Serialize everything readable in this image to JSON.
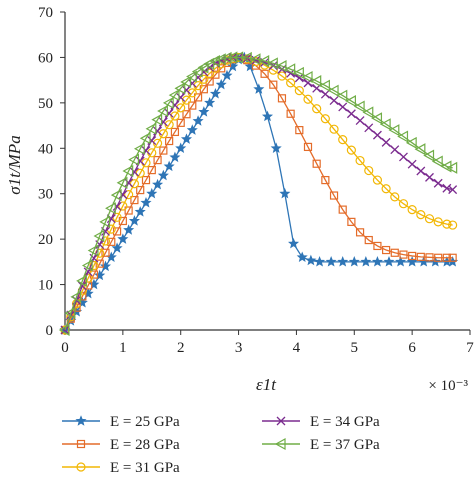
{
  "chart_data": {
    "type": "line",
    "xlabel": "ε1t",
    "ylabel": "σ1t/MPa",
    "x_multiplier_label": "× 10⁻³",
    "xlim": [
      0,
      7
    ],
    "ylim": [
      0,
      70
    ],
    "x_ticks": [
      "0",
      "1",
      "2",
      "3",
      "4",
      "5",
      "6",
      "7"
    ],
    "y_ticks": [
      "0",
      "10",
      "20",
      "30",
      "40",
      "50",
      "60",
      "70"
    ],
    "grid": false,
    "legend_position": "bottom",
    "series": [
      {
        "name": "E = 25 GPa",
        "color": "#2e75b6",
        "marker": "star",
        "x": [
          0,
          0.1,
          0.2,
          0.3,
          0.4,
          0.5,
          0.6,
          0.7,
          0.8,
          0.9,
          1.0,
          1.1,
          1.2,
          1.3,
          1.4,
          1.5,
          1.6,
          1.7,
          1.8,
          1.9,
          2.0,
          2.1,
          2.2,
          2.3,
          2.4,
          2.5,
          2.6,
          2.7,
          2.8,
          2.9,
          3.0,
          3.1,
          3.2,
          3.35,
          3.5,
          3.65,
          3.8,
          3.95,
          4.1,
          4.25,
          4.4,
          4.6,
          4.8,
          5.0,
          5.2,
          5.4,
          5.6,
          5.8,
          6.0,
          6.2,
          6.4,
          6.6,
          6.7
        ],
        "y": [
          0,
          2,
          4,
          6,
          8,
          10,
          12,
          14,
          16,
          18,
          20,
          22,
          24,
          26,
          28,
          30,
          32,
          34,
          36,
          38,
          40,
          42,
          44,
          46,
          48,
          50,
          52,
          54,
          56,
          58,
          59.5,
          60,
          58,
          53,
          47,
          40,
          30,
          19,
          16,
          15.3,
          15,
          15,
          15,
          15,
          15,
          15,
          15,
          15,
          15,
          15,
          15,
          15,
          15
        ]
      },
      {
        "name": "E = 28 GPa",
        "color": "#e46c2a",
        "marker": "square",
        "x": [
          0,
          0.1,
          0.2,
          0.3,
          0.4,
          0.5,
          0.6,
          0.7,
          0.8,
          0.9,
          1.0,
          1.1,
          1.2,
          1.3,
          1.4,
          1.5,
          1.6,
          1.7,
          1.8,
          1.9,
          2.0,
          2.1,
          2.2,
          2.3,
          2.4,
          2.5,
          2.6,
          2.7,
          2.8,
          2.9,
          3.0,
          3.15,
          3.3,
          3.45,
          3.6,
          3.75,
          3.9,
          4.05,
          4.2,
          4.35,
          4.5,
          4.65,
          4.8,
          4.95,
          5.1,
          5.25,
          5.4,
          5.55,
          5.7,
          5.85,
          6.0,
          6.15,
          6.3,
          6.45,
          6.6,
          6.7
        ],
        "y": [
          0,
          2.5,
          4.9,
          7.4,
          9.8,
          12.2,
          14.6,
          17,
          19.4,
          21.7,
          24,
          26.3,
          28.6,
          30.8,
          33,
          35.2,
          37.4,
          39.5,
          41.6,
          43.6,
          45.6,
          47.5,
          49.4,
          51.2,
          53,
          54.7,
          56.2,
          57.6,
          58.8,
          59.6,
          60,
          59.4,
          58.2,
          56.4,
          54,
          51,
          47.6,
          44,
          40.3,
          36.6,
          33,
          29.6,
          26.5,
          23.8,
          21.5,
          19.8,
          18.5,
          17.6,
          17,
          16.6,
          16.3,
          16.1,
          16,
          15.9,
          15.9,
          15.9
        ]
      },
      {
        "name": "E = 31 GPa",
        "color": "#f2b705",
        "marker": "circle",
        "x": [
          0,
          0.1,
          0.2,
          0.3,
          0.4,
          0.5,
          0.6,
          0.7,
          0.8,
          0.9,
          1.0,
          1.1,
          1.2,
          1.3,
          1.4,
          1.5,
          1.6,
          1.7,
          1.8,
          1.9,
          2.0,
          2.1,
          2.2,
          2.3,
          2.4,
          2.5,
          2.6,
          2.7,
          2.8,
          2.9,
          3.0,
          3.15,
          3.3,
          3.45,
          3.6,
          3.75,
          3.9,
          4.05,
          4.2,
          4.35,
          4.5,
          4.65,
          4.8,
          4.95,
          5.1,
          5.25,
          5.4,
          5.55,
          5.7,
          5.85,
          6.0,
          6.15,
          6.3,
          6.45,
          6.6,
          6.7
        ],
        "y": [
          0,
          2.9,
          5.8,
          8.6,
          11.4,
          14.2,
          16.9,
          19.6,
          22.2,
          24.8,
          27.3,
          29.8,
          32.2,
          34.5,
          36.8,
          39,
          41.1,
          43.2,
          45.2,
          47.1,
          48.9,
          50.6,
          52.2,
          53.8,
          55.2,
          56.5,
          57.6,
          58.6,
          59.4,
          59.8,
          60,
          59.7,
          59.1,
          58.3,
          57.2,
          55.9,
          54.4,
          52.7,
          50.8,
          48.7,
          46.5,
          44.2,
          41.9,
          39.6,
          37.3,
          35.1,
          33,
          31.1,
          29.3,
          27.8,
          26.5,
          25.4,
          24.5,
          23.8,
          23.3,
          23.1
        ]
      },
      {
        "name": "E = 34 GPa",
        "color": "#7b2c8f",
        "marker": "x",
        "x": [
          0,
          0.1,
          0.2,
          0.3,
          0.4,
          0.5,
          0.6,
          0.7,
          0.8,
          0.9,
          1.0,
          1.1,
          1.2,
          1.3,
          1.4,
          1.5,
          1.6,
          1.7,
          1.8,
          1.9,
          2.0,
          2.1,
          2.2,
          2.3,
          2.4,
          2.5,
          2.6,
          2.7,
          2.8,
          2.9,
          3.0,
          3.15,
          3.3,
          3.45,
          3.6,
          3.75,
          3.9,
          4.05,
          4.2,
          4.35,
          4.5,
          4.65,
          4.8,
          4.95,
          5.1,
          5.25,
          5.4,
          5.55,
          5.7,
          5.85,
          6.0,
          6.15,
          6.3,
          6.45,
          6.6,
          6.7
        ],
        "y": [
          0,
          3.3,
          6.5,
          9.7,
          12.8,
          15.8,
          18.8,
          21.7,
          24.5,
          27.2,
          29.8,
          32.4,
          34.8,
          37.2,
          39.5,
          41.7,
          43.8,
          45.8,
          47.7,
          49.5,
          51.2,
          52.8,
          54.3,
          55.6,
          56.8,
          57.8,
          58.7,
          59.3,
          59.7,
          60,
          60,
          59.8,
          59.4,
          58.9,
          58.2,
          57.4,
          56.5,
          55.5,
          54.4,
          53.2,
          51.9,
          50.5,
          49.1,
          47.6,
          46.1,
          44.5,
          42.9,
          41.3,
          39.7,
          38.1,
          36.5,
          35,
          33.6,
          32.3,
          31.2,
          30.9
        ]
      },
      {
        "name": "E = 37 GPa",
        "color": "#70ad47",
        "marker": "triangle-left",
        "x": [
          0,
          0.1,
          0.2,
          0.3,
          0.4,
          0.5,
          0.6,
          0.7,
          0.8,
          0.9,
          1.0,
          1.1,
          1.2,
          1.3,
          1.4,
          1.5,
          1.6,
          1.7,
          1.8,
          1.9,
          2.0,
          2.1,
          2.2,
          2.3,
          2.4,
          2.5,
          2.6,
          2.7,
          2.8,
          2.9,
          3.0,
          3.15,
          3.3,
          3.45,
          3.6,
          3.75,
          3.9,
          4.05,
          4.2,
          4.35,
          4.5,
          4.65,
          4.8,
          4.95,
          5.1,
          5.25,
          5.4,
          5.55,
          5.7,
          5.85,
          6.0,
          6.15,
          6.3,
          6.45,
          6.6,
          6.7
        ],
        "y": [
          0,
          3.7,
          7.3,
          10.8,
          14.2,
          17.5,
          20.7,
          23.8,
          26.8,
          29.7,
          32.4,
          35,
          37.5,
          39.9,
          42.2,
          44.3,
          46.3,
          48.2,
          50,
          51.7,
          53.2,
          54.6,
          55.8,
          56.9,
          57.8,
          58.6,
          59.2,
          59.6,
          59.9,
          60,
          60,
          59.9,
          59.6,
          59.2,
          58.7,
          58.1,
          57.4,
          56.6,
          55.7,
          54.8,
          53.8,
          52.7,
          51.6,
          50.4,
          49.2,
          47.9,
          46.6,
          45.3,
          44,
          42.6,
          41.2,
          39.8,
          38.4,
          37.1,
          36,
          35.7
        ]
      }
    ]
  }
}
